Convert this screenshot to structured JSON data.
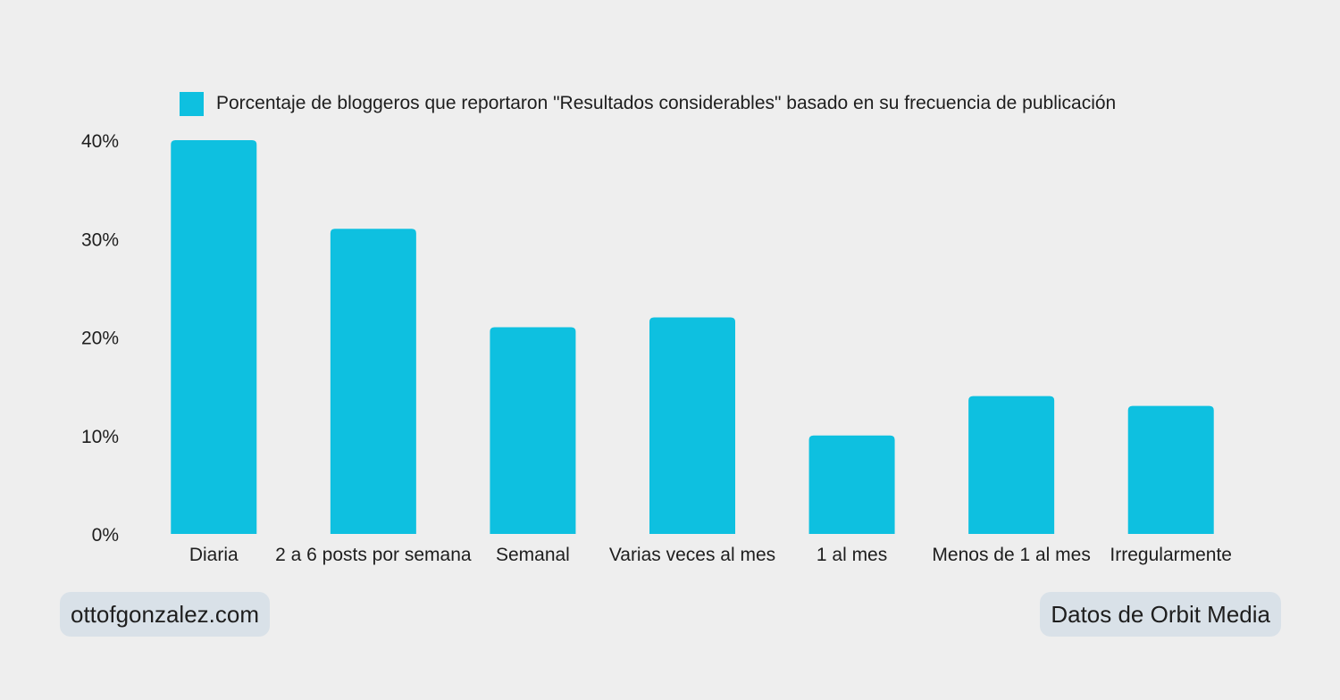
{
  "chart_data": {
    "type": "bar",
    "categories": [
      "Diaria",
      "2 a 6 posts por semana",
      "Semanal",
      "Varias veces al mes",
      "1 al mes",
      "Menos de 1 al mes",
      "Irregularmente"
    ],
    "series": [
      {
        "name": "Porcentaje de bloggeros que reportaron \"Resultados considerables\" basado en su frecuencia de publicación",
        "values": [
          40,
          31,
          21,
          22,
          10,
          14,
          13
        ]
      }
    ],
    "yticks": [
      "0%",
      "10%",
      "20%",
      "30%",
      "40%"
    ],
    "ylim": [
      0,
      40
    ],
    "color": "#0ec0e0",
    "legend_position": "top",
    "grid": false
  },
  "footer": {
    "left_badge": "ottofgonzalez.com",
    "right_badge": "Datos de Orbit Media"
  }
}
